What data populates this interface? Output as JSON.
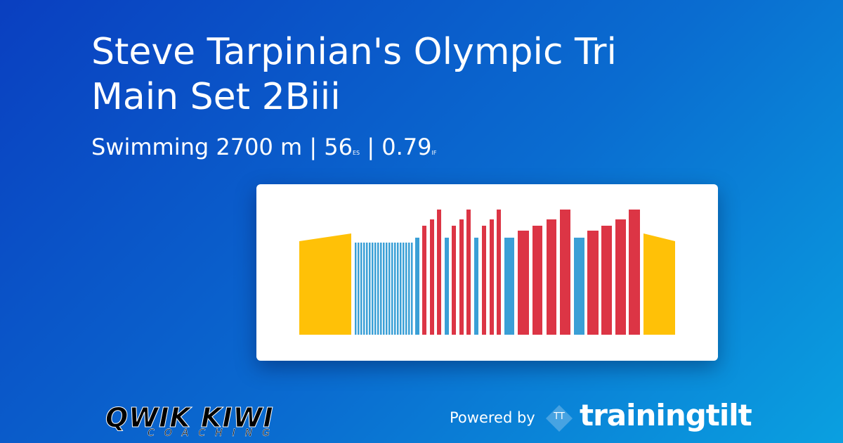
{
  "header": {
    "title": "Steve Tarpinian's Olympic Tri Main Set 2Biii",
    "sport": "Swimming",
    "distance": "2700 m",
    "separator": "|",
    "score": "56",
    "score_unit": "ES",
    "intensity": "0.79",
    "intensity_unit": "IF"
  },
  "footer": {
    "logo": {
      "name": "QWIK KIWI",
      "tagline": "COACHING"
    },
    "powered_by": "Powered by",
    "brand_icon": "TT",
    "brand": "trainingtilt"
  }
}
